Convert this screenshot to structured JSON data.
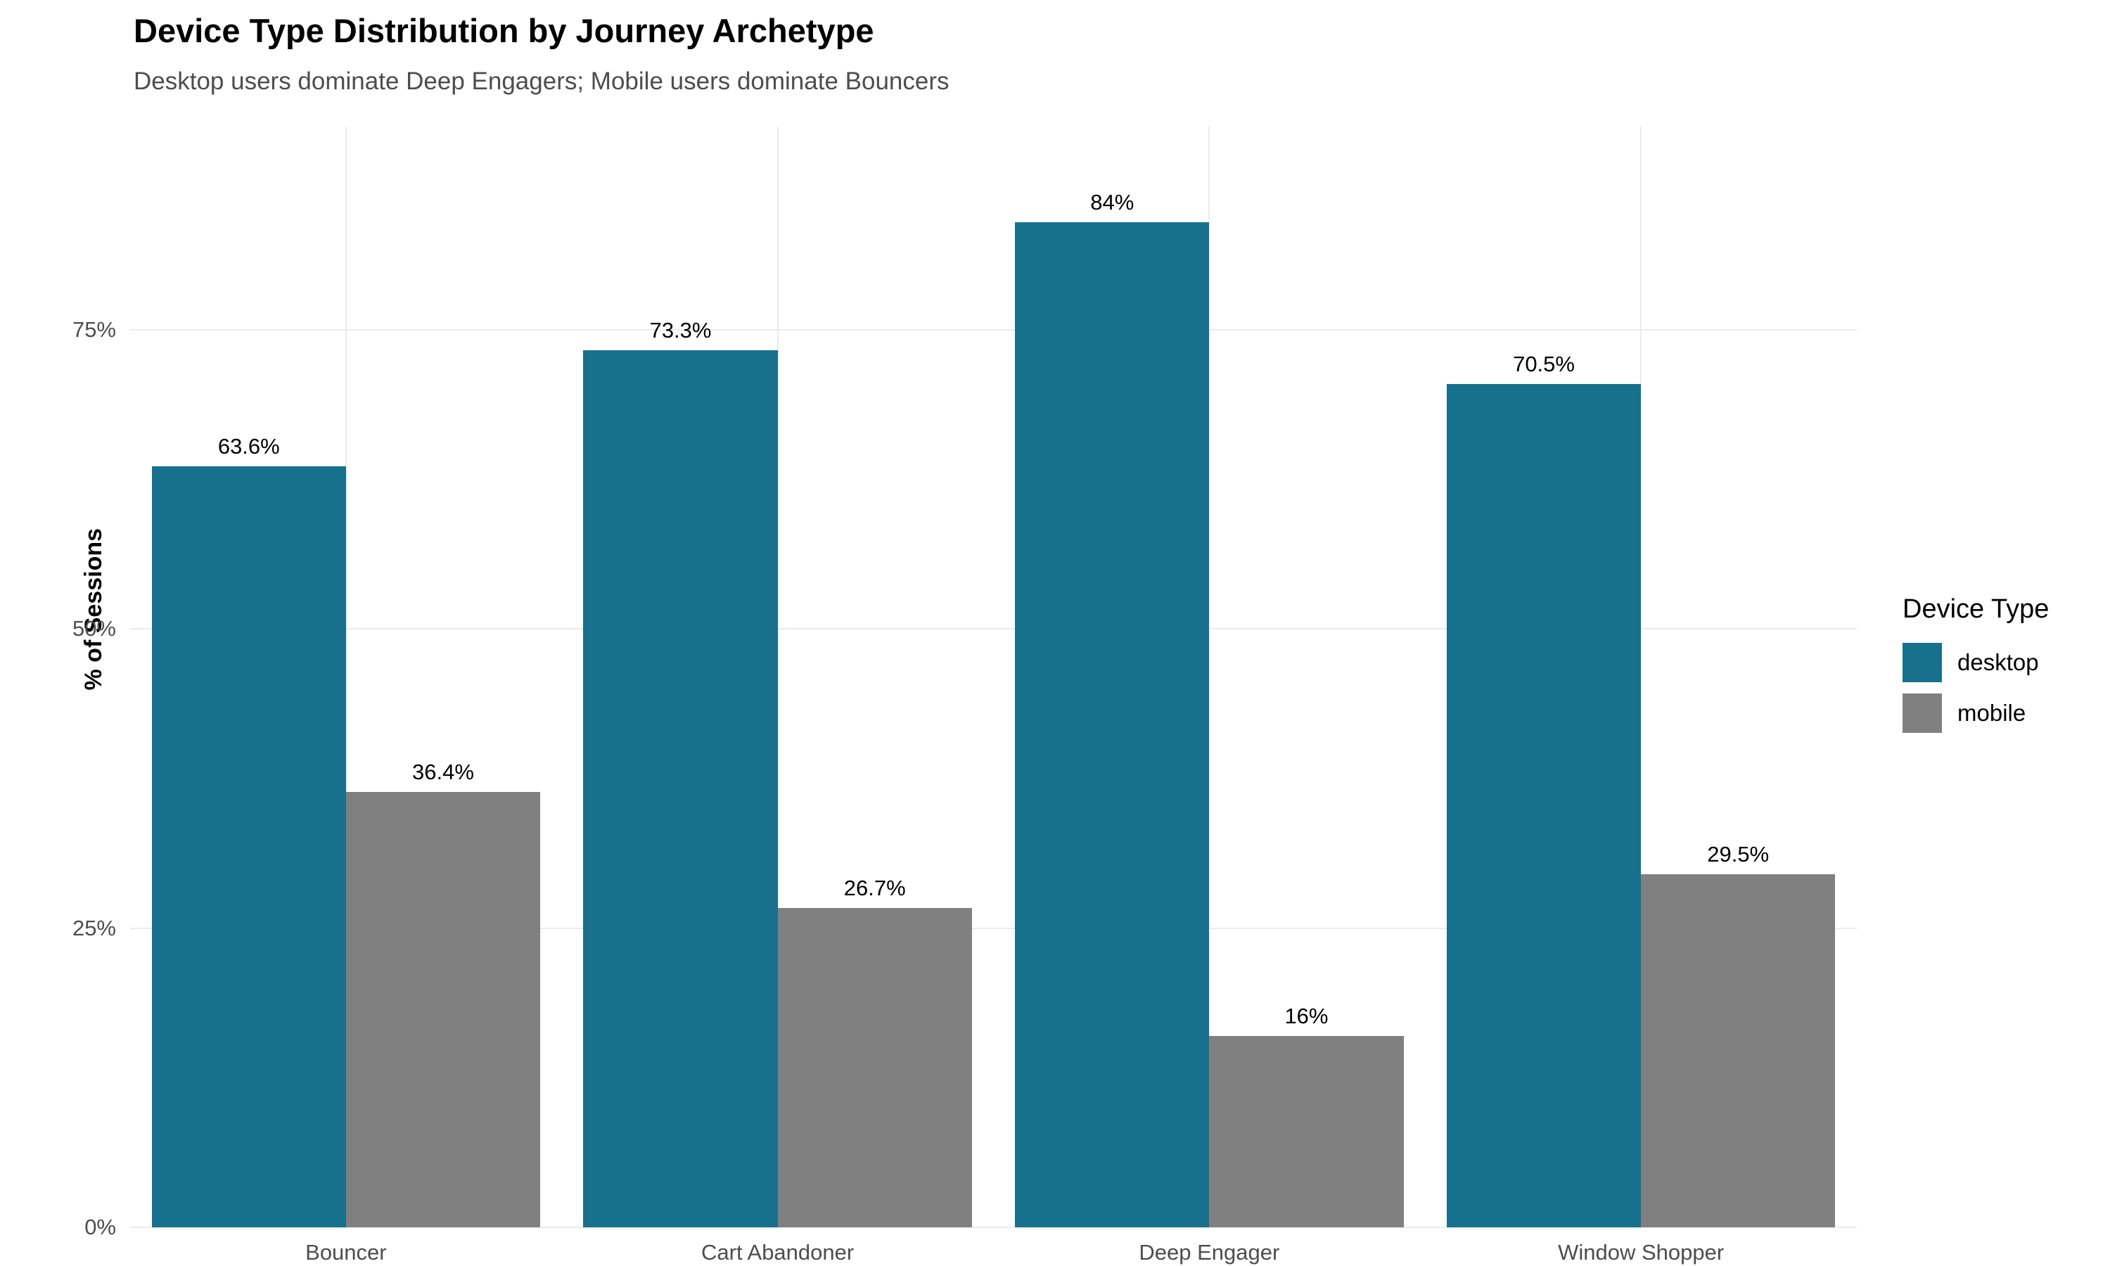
{
  "title": "Device Type Distribution by Journey Archetype",
  "subtitle": "Desktop users dominate Deep Engagers; Mobile users dominate Bouncers",
  "chart_data": {
    "type": "bar",
    "title": "Device Type Distribution by Journey Archetype",
    "subtitle": "Desktop users dominate Deep Engagers; Mobile users dominate Bouncers",
    "categories": [
      "Bouncer",
      "Cart Abandoner",
      "Deep Engager",
      "Window Shopper"
    ],
    "series": [
      {
        "name": "desktop",
        "color": "#17718c",
        "values": [
          63.6,
          73.3,
          84,
          70.5
        ],
        "value_labels": [
          "63.6%",
          "73.3%",
          "84%",
          "70.5%"
        ]
      },
      {
        "name": "mobile",
        "color": "#808080",
        "values": [
          36.4,
          26.7,
          16,
          29.5
        ],
        "value_labels": [
          "36.4%",
          "26.7%",
          "16%",
          "29.5%"
        ]
      }
    ],
    "xlabel": "",
    "ylabel": "% of Sessions",
    "yticks": [
      0,
      25,
      50,
      75
    ],
    "ytick_labels": [
      "0%",
      "25%",
      "50%",
      "75%"
    ],
    "ylim": [
      0,
      92
    ],
    "grid": true,
    "legend_title": "Device Type",
    "legend_position": "right"
  }
}
